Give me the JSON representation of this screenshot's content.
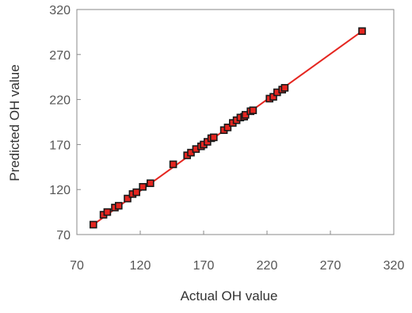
{
  "chart_data": {
    "type": "scatter",
    "title": "",
    "xlabel": "Actual OH value",
    "ylabel": "Predicted OH value",
    "xlim": [
      70,
      320
    ],
    "ylim": [
      70,
      320
    ],
    "xticks": [
      "70",
      "120",
      "170",
      "220",
      "270",
      "320"
    ],
    "yticks": [
      "70",
      "120",
      "170",
      "220",
      "270",
      "320"
    ],
    "grid": false,
    "legend": "none",
    "marker_color": "#e52620",
    "marker_edge_color": "#1a1a1a",
    "fit_line_color": "#e52620",
    "fit_line": {
      "x": [
        83,
        295
      ],
      "y": [
        81,
        296
      ]
    },
    "points": {
      "x": [
        83,
        91,
        94,
        100,
        103,
        110,
        114,
        117,
        122,
        128,
        146,
        157,
        160,
        164,
        168,
        170,
        173,
        176,
        178,
        186,
        189,
        193,
        196,
        199,
        202,
        203,
        207,
        209,
        222,
        225,
        228,
        232,
        234,
        295
      ],
      "y": [
        81,
        92,
        95,
        100,
        102,
        110,
        115,
        117,
        123,
        127,
        148,
        158,
        161,
        165,
        168,
        170,
        173,
        177,
        178,
        186,
        189,
        194,
        197,
        200,
        201,
        203,
        207,
        208,
        221,
        223,
        228,
        231,
        233,
        296
      ]
    }
  }
}
